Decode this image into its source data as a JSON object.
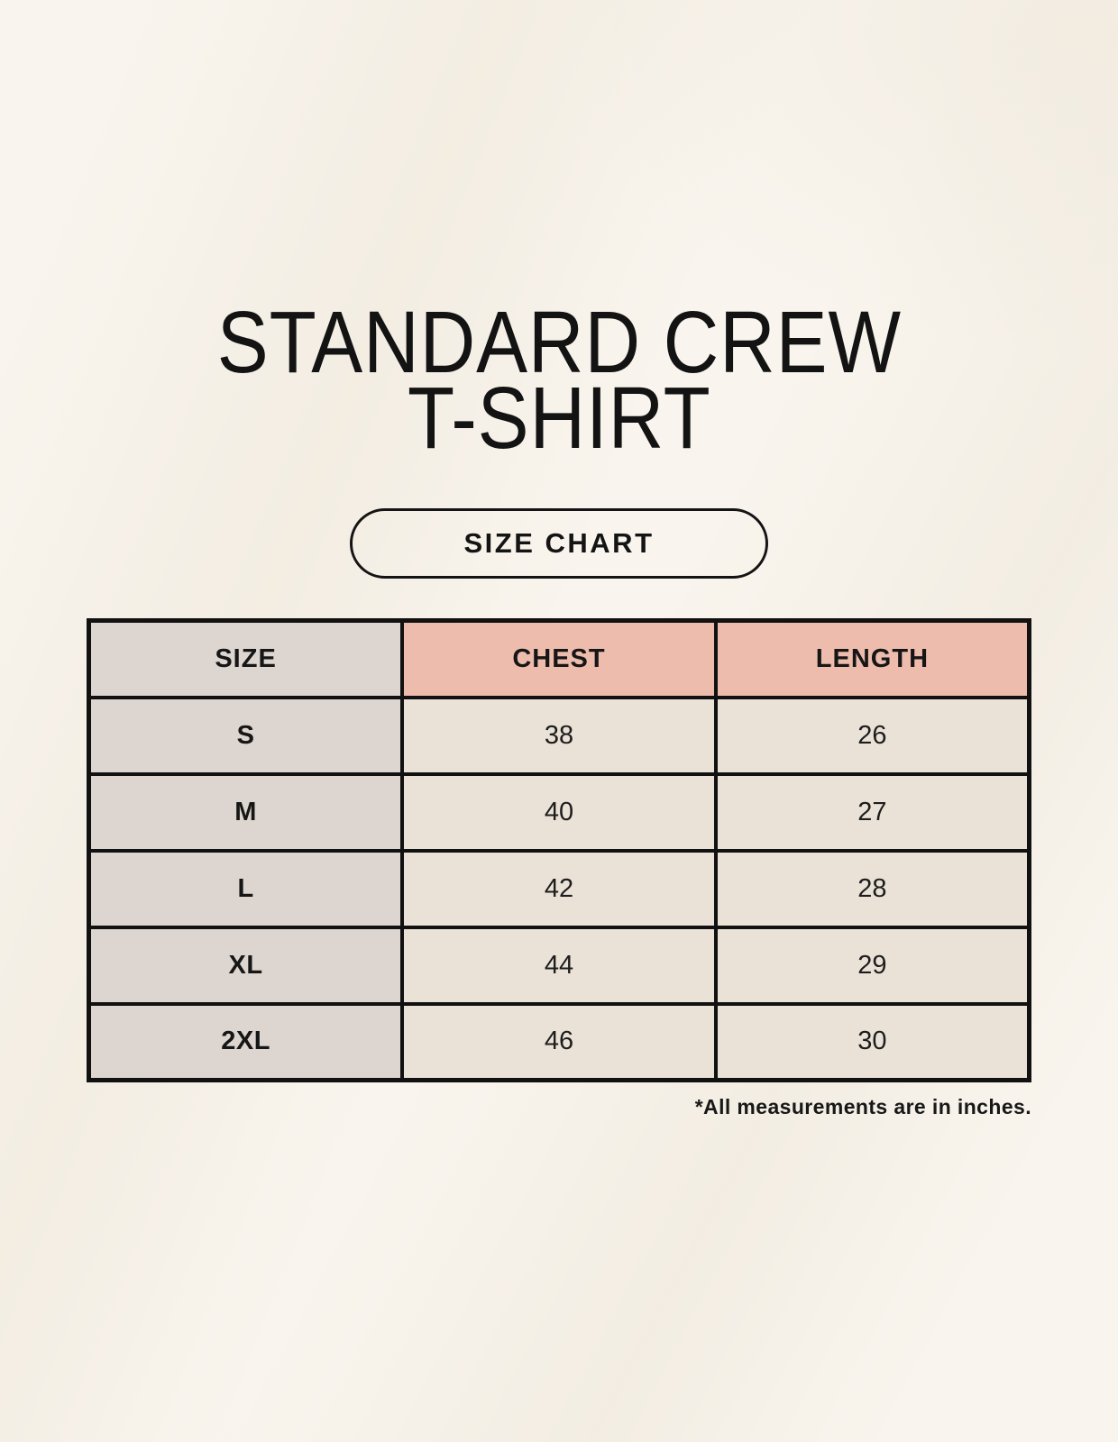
{
  "page": {
    "title_line1": "STANDARD CREW",
    "title_line2": "T-SHIRT",
    "badge_label": "SIZE CHART",
    "footnote": "*All measurements are in inches."
  },
  "table": {
    "headers": {
      "size": "SIZE",
      "chest": "CHEST",
      "length": "LENGTH"
    },
    "rows": [
      {
        "size": "S",
        "chest": "38",
        "length": "26"
      },
      {
        "size": "M",
        "chest": "40",
        "length": "27"
      },
      {
        "size": "L",
        "chest": "42",
        "length": "28"
      },
      {
        "size": "XL",
        "chest": "44",
        "length": "29"
      },
      {
        "size": "2XL",
        "chest": "46",
        "length": "30"
      }
    ],
    "units_note": "inches"
  },
  "colors": {
    "background": "#f9f5ee",
    "header_pink": "#eebcad",
    "size_column_taupe": "#ddd5cf",
    "value_cell_cream": "#eae2d7",
    "border_black": "#111111",
    "text_black": "#141414"
  }
}
